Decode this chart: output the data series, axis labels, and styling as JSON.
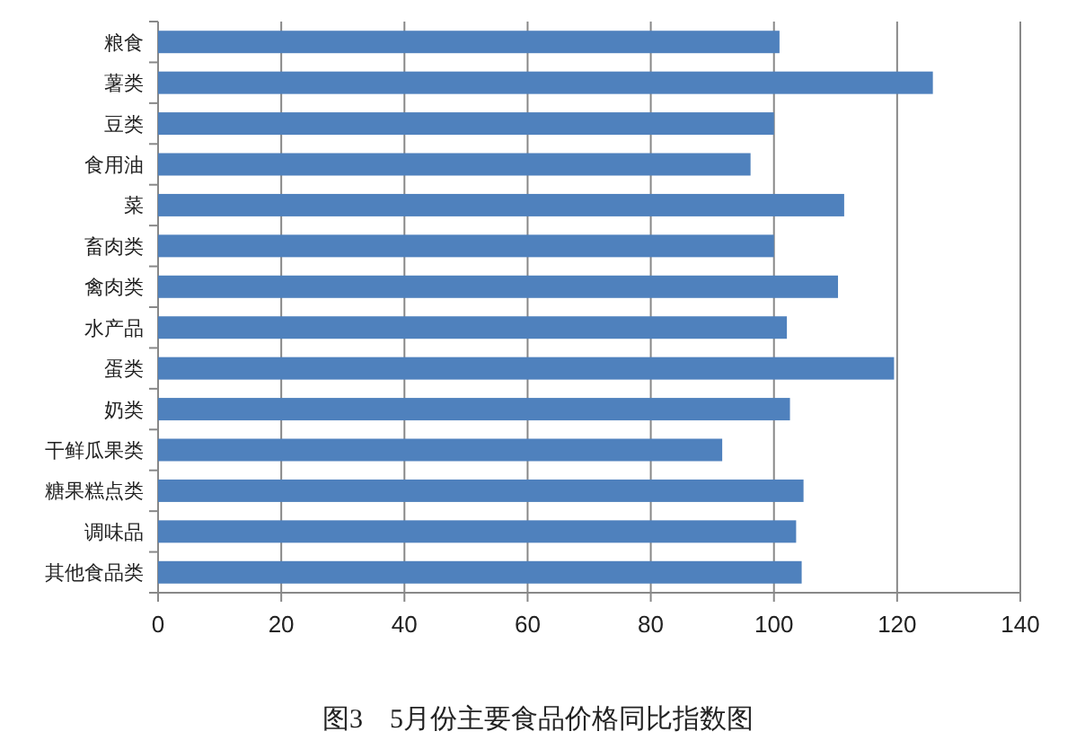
{
  "chart_data": {
    "type": "bar",
    "orientation": "horizontal",
    "title": "图3　5月份主要食品价格同比指数图",
    "categories": [
      "粮食",
      "薯类",
      "豆类",
      "食用油",
      "菜",
      "畜肉类",
      "禽肉类",
      "水产品",
      "蛋类",
      "奶类",
      "干鲜瓜果类",
      "糖果糕点类",
      "调味品",
      "其他食品类"
    ],
    "values": [
      100.9,
      125.8,
      100.0,
      96.2,
      111.4,
      100.0,
      110.4,
      102.1,
      119.5,
      102.6,
      91.6,
      104.8,
      103.6,
      104.5
    ],
    "color": "#4f81bd",
    "xlim": [
      0,
      140
    ],
    "xticks": [
      0,
      20,
      40,
      60,
      80,
      100,
      120,
      140
    ],
    "grid": "x"
  }
}
